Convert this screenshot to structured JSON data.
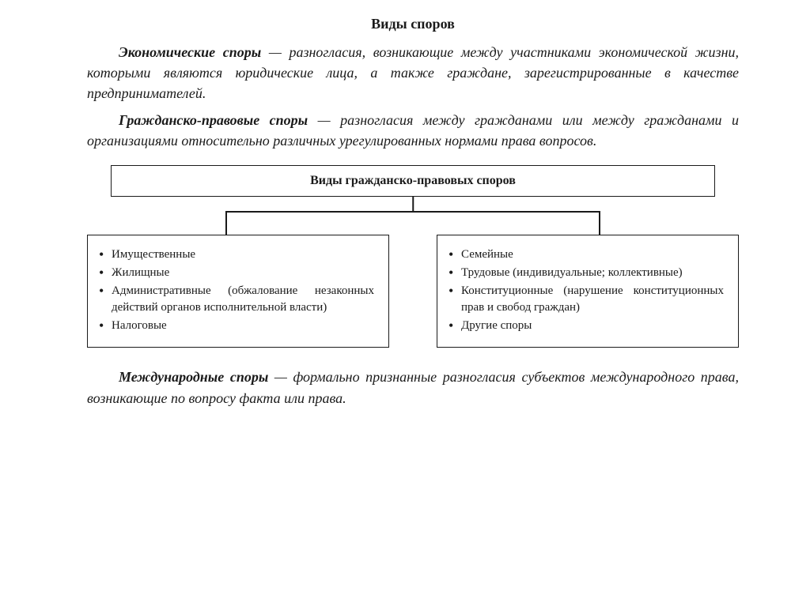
{
  "title": "Виды споров",
  "paragraphs": {
    "p1_term": "Экономические споры",
    "p1_rest": " — разногласия, возникающие между участниками экономической жизни, которыми являются юридические лица, а также граждане, зарегистрированные в качестве предпринимателей.",
    "p2_term": "Гражданско-правовые споры",
    "p2_rest": " — разногласия между гражданами или между гражданами и организациями относительно различных урегулированных нормами права вопросов.",
    "p3_term": "Международные споры",
    "p3_rest": " — формально признанные разногласия субъектов международного права, возникающие по вопросу факта или права."
  },
  "diagram": {
    "header": "Виды гражданско-правовых споров",
    "left_items": [
      "Имущественные",
      "Жилищные",
      "Административные (обжалование незаконных действий органов исполнительной власти)",
      "Налоговые"
    ],
    "right_items": [
      "Семейные",
      "Трудовые (индивидуальные; коллективные)",
      "Конституционные (нарушение конституционных прав и свобод граждан)",
      "Другие споры"
    ],
    "border_color": "#1a1a1a",
    "background_color": "#ffffff"
  }
}
